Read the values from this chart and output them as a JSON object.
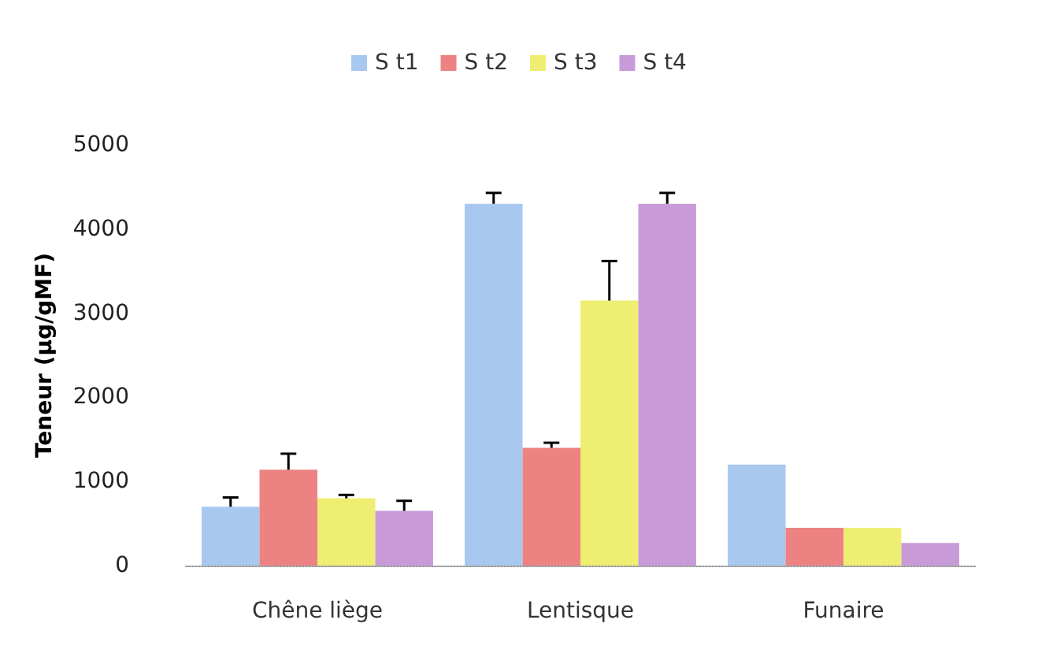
{
  "chart_data": {
    "type": "bar",
    "ylabel": "Teneur (µg/gMF)",
    "categories": [
      "Chêne liège",
      "Lentisque",
      "Funaire"
    ],
    "series": [
      {
        "name": "S t1",
        "color": "#a8c8f0",
        "values": [
          700,
          4300,
          1200
        ],
        "errors": [
          110,
          130,
          null
        ]
      },
      {
        "name": "S t2",
        "color": "#ec8282",
        "values": [
          1140,
          1400,
          450
        ],
        "errors": [
          190,
          60,
          null
        ]
      },
      {
        "name": "S t3",
        "color": "#eeee72",
        "values": [
          800,
          3150,
          450
        ],
        "errors": [
          40,
          470,
          null
        ]
      },
      {
        "name": "S t4",
        "color": "#c99ad8",
        "values": [
          650,
          4300,
          270
        ],
        "errors": [
          120,
          130,
          null
        ]
      }
    ],
    "ylim": [
      0,
      5000
    ],
    "yticks": [
      0,
      1000,
      2000,
      3000,
      4000,
      5000
    ],
    "grid": false,
    "legend": "top"
  }
}
